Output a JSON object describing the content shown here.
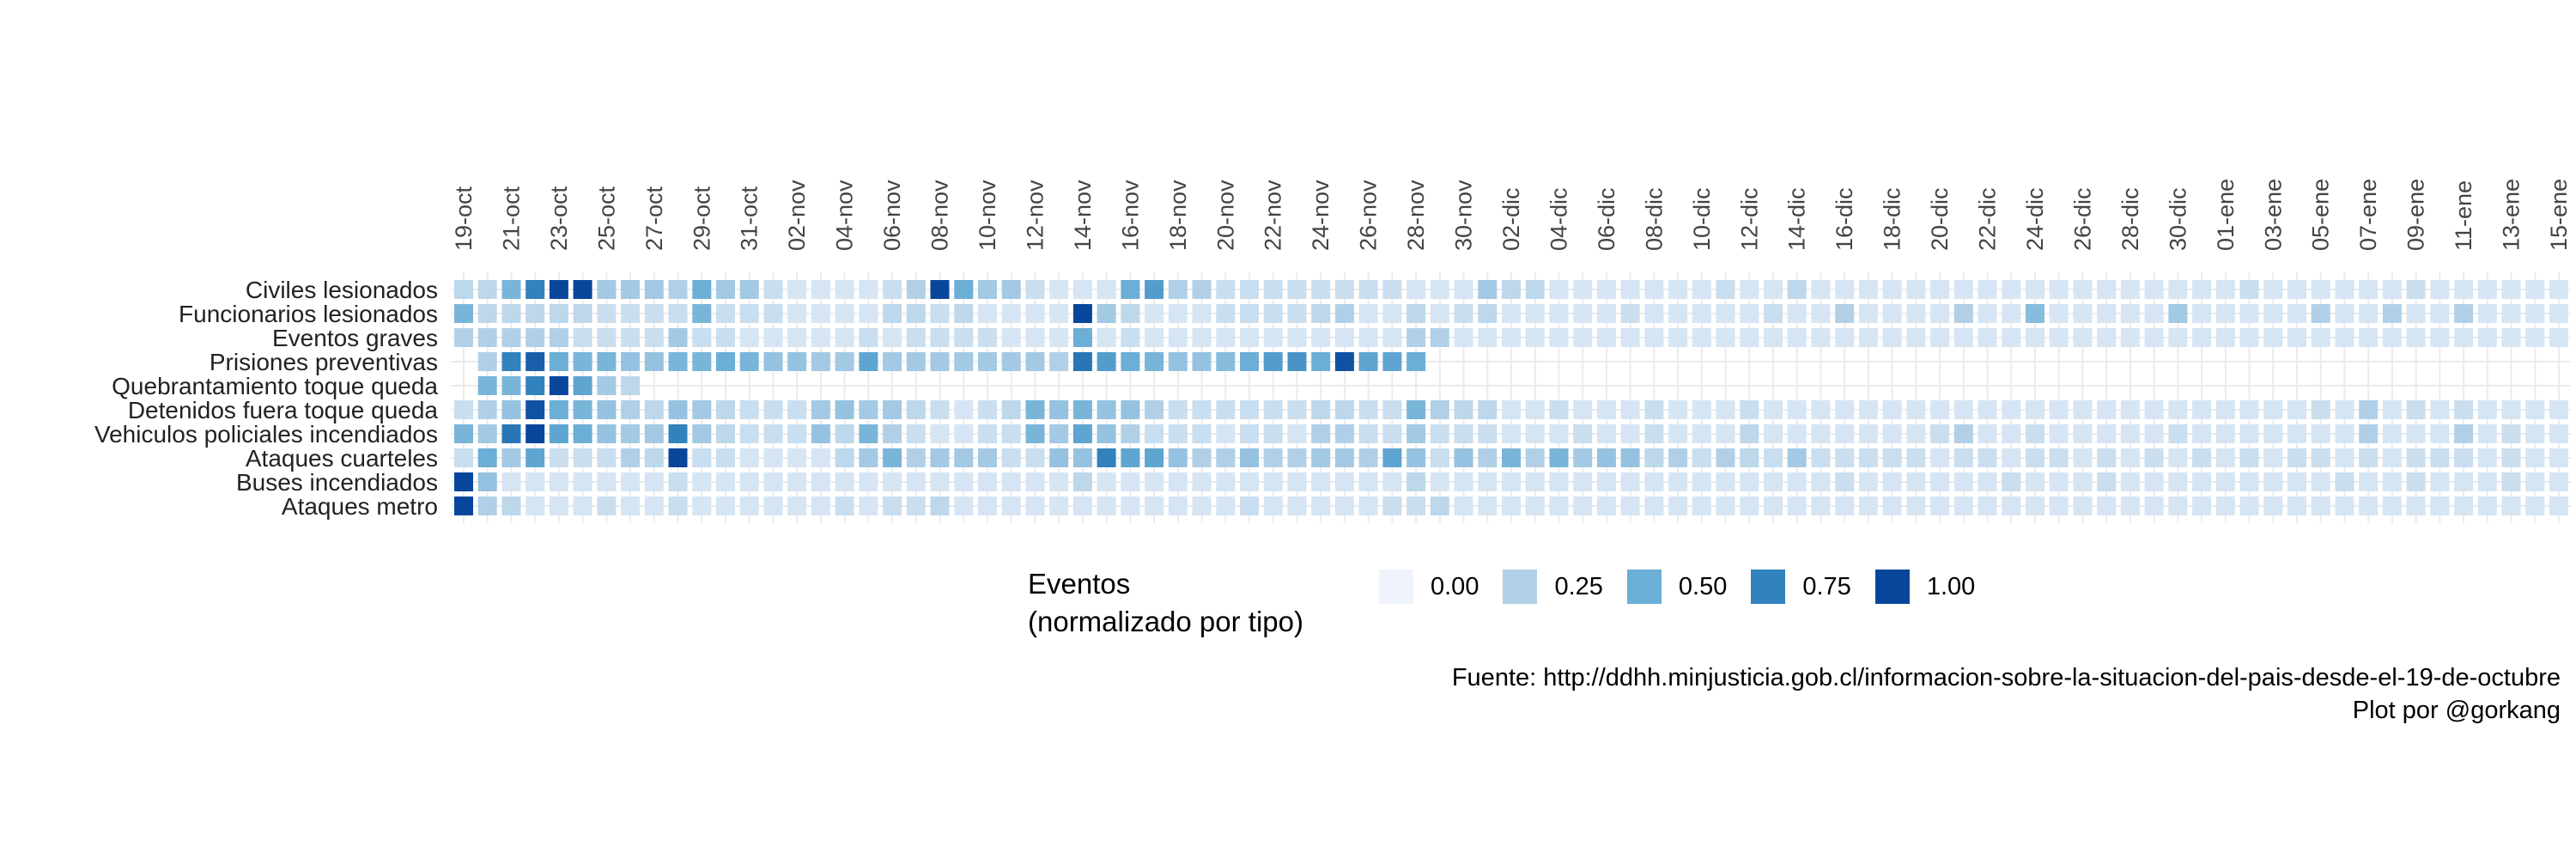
{
  "chart_data": {
    "type": "heatmap",
    "x_ticks": [
      "19-oct",
      "21-oct",
      "23-oct",
      "25-oct",
      "27-oct",
      "29-oct",
      "31-oct",
      "02-nov",
      "04-nov",
      "06-nov",
      "08-nov",
      "10-nov",
      "12-nov",
      "14-nov",
      "16-nov",
      "18-nov",
      "20-nov",
      "22-nov",
      "24-nov",
      "26-nov",
      "28-nov",
      "30-nov",
      "02-dic",
      "04-dic",
      "06-dic",
      "08-dic",
      "10-dic",
      "12-dic",
      "14-dic",
      "16-dic",
      "18-dic",
      "20-dic",
      "22-dic",
      "24-dic",
      "26-dic",
      "28-dic",
      "30-dic",
      "01-ene",
      "03-ene",
      "05-ene",
      "07-ene",
      "09-ene",
      "11-ene",
      "13-ene",
      "15-ene"
    ],
    "num_days": 89,
    "rows": [
      {
        "label": "Civiles lesionados",
        "values": [
          0.2,
          0.2,
          0.45,
          0.75,
          1,
          1,
          0.3,
          0.3,
          0.3,
          0.25,
          0.5,
          0.3,
          0.3,
          0.15,
          0.1,
          0.1,
          0.1,
          0.1,
          0.15,
          0.25,
          1,
          0.5,
          0.3,
          0.3,
          0.15,
          0.1,
          0.1,
          0.1,
          0.5,
          0.6,
          0.25,
          0.25,
          0.15,
          0.15,
          0.15,
          0.15,
          0.15,
          0.15,
          0.15,
          0.15,
          0.1,
          0.1,
          0.1,
          0.3,
          0.2,
          0.2,
          0.1,
          0.1,
          0.1,
          0.1,
          0.1,
          0.1,
          0.1,
          0.15,
          0.1,
          0.1,
          0.2,
          0.1,
          0.1,
          0.1,
          0.1,
          0.1,
          0.1,
          0.1,
          0.1,
          0.1,
          0.1,
          0.1,
          0.1,
          0.1,
          0.1,
          0.1,
          0.1,
          0.1,
          0.1,
          0.15,
          0.1,
          0.1,
          0.1,
          0.1,
          0.1,
          0.1,
          0.15,
          0.1,
          0.1,
          0.1,
          0.1,
          0.1,
          0.1
        ]
      },
      {
        "label": "Funcionarios lesionados",
        "values": [
          0.45,
          0.2,
          0.2,
          0.2,
          0.2,
          0.2,
          0.15,
          0.15,
          0.15,
          0.15,
          0.45,
          0.15,
          0.15,
          0.15,
          0.1,
          0.1,
          0.1,
          0.1,
          0.2,
          0.2,
          0.15,
          0.2,
          0.1,
          0.1,
          0.1,
          0.1,
          1,
          0.3,
          0.2,
          0.1,
          0.1,
          0.1,
          0.15,
          0.15,
          0.15,
          0.15,
          0.2,
          0.25,
          0.1,
          0.1,
          0.2,
          0.1,
          0.15,
          0.2,
          0.1,
          0.1,
          0.1,
          0.1,
          0.1,
          0.15,
          0.1,
          0.1,
          0.1,
          0.1,
          0.1,
          0.15,
          0.1,
          0.1,
          0.25,
          0.1,
          0.1,
          0.1,
          0.1,
          0.25,
          0.1,
          0.1,
          0.4,
          0.1,
          0.1,
          0.1,
          0.1,
          0.1,
          0.3,
          0.1,
          0.1,
          0.1,
          0.1,
          0.1,
          0.25,
          0.1,
          0.1,
          0.25,
          0.1,
          0.1,
          0.25,
          0.1,
          0.1,
          0.1,
          0.1
        ]
      },
      {
        "label": "Eventos graves",
        "values": [
          0.25,
          0.25,
          0.25,
          0.25,
          0.25,
          0.15,
          0.15,
          0.15,
          0.15,
          0.3,
          0.15,
          0.15,
          0.1,
          0.1,
          0.1,
          0.1,
          0.1,
          0.15,
          0.1,
          0.15,
          0.15,
          0.15,
          0.15,
          0.1,
          0.1,
          0.1,
          0.5,
          0.1,
          0.15,
          0.1,
          0.1,
          0.1,
          0.1,
          0.1,
          0.1,
          0.1,
          0.1,
          0.1,
          0.1,
          0.1,
          0.25,
          0.25,
          0.1,
          0.1,
          0.1,
          0.1,
          0.1,
          0.1,
          0.1,
          0.1,
          0.1,
          0.1,
          0.1,
          0.1,
          0.1,
          0.1,
          0.1,
          0.1,
          0.1,
          0.1,
          0.1,
          0.1,
          0.1,
          0.1,
          0.1,
          0.1,
          0.1,
          0.1,
          0.1,
          0.1,
          0.1,
          0.1,
          0.1,
          0.1,
          0.1,
          0.1,
          0.1,
          0.1,
          0.1,
          0.1,
          0.1,
          0.1,
          0.1,
          0.1,
          0.1,
          0.1,
          0.1,
          0.1,
          0.1
        ]
      },
      {
        "label": "Prisiones preventivas",
        "values": [
          null,
          0.25,
          0.75,
          0.9,
          0.5,
          0.45,
          0.45,
          0.35,
          0.35,
          0.45,
          0.45,
          0.5,
          0.45,
          0.35,
          0.35,
          0.3,
          0.3,
          0.55,
          0.3,
          0.3,
          0.3,
          0.3,
          0.3,
          0.3,
          0.3,
          0.25,
          0.8,
          0.6,
          0.5,
          0.45,
          0.35,
          0.35,
          0.4,
          0.5,
          0.6,
          0.65,
          0.5,
          0.95,
          0.55,
          0.55,
          0.5,
          null,
          null,
          null,
          null,
          null,
          null,
          null,
          null,
          null,
          null,
          null,
          null,
          null,
          null,
          null,
          null,
          null,
          null,
          null,
          null,
          null,
          null,
          null,
          null,
          null,
          null,
          null,
          null,
          null,
          null,
          null,
          null,
          null,
          null,
          null,
          null,
          null,
          null,
          null,
          null,
          null,
          null,
          null,
          null,
          null,
          null,
          null,
          null
        ]
      },
      {
        "label": "Quebrantamiento toque queda",
        "values": [
          null,
          0.45,
          0.45,
          0.75,
          1,
          0.55,
          0.3,
          0.2,
          null,
          null,
          null,
          null,
          null,
          null,
          null,
          null,
          null,
          null,
          null,
          null,
          null,
          null,
          null,
          null,
          null,
          null,
          null,
          null,
          null,
          null,
          null,
          null,
          null,
          null,
          null,
          null,
          null,
          null,
          null,
          null,
          null,
          null,
          null,
          null,
          null,
          null,
          null,
          null,
          null,
          null,
          null,
          null,
          null,
          null,
          null,
          null,
          null,
          null,
          null,
          null,
          null,
          null,
          null,
          null,
          null,
          null,
          null,
          null,
          null,
          null,
          null,
          null,
          null,
          null,
          null,
          null,
          null,
          null,
          null,
          null,
          null,
          null,
          null,
          null,
          null,
          null,
          null,
          null,
          null
        ]
      },
      {
        "label": "Detenidos fuera toque queda",
        "values": [
          0.15,
          0.25,
          0.35,
          0.95,
          0.5,
          0.45,
          0.35,
          0.25,
          0.2,
          0.35,
          0.3,
          0.2,
          0.15,
          0.15,
          0.15,
          0.3,
          0.35,
          0.3,
          0.3,
          0.2,
          0.15,
          0.1,
          0.15,
          0.2,
          0.45,
          0.35,
          0.45,
          0.35,
          0.35,
          0.25,
          0.15,
          0.15,
          0.15,
          0.15,
          0.15,
          0.15,
          0.2,
          0.2,
          0.15,
          0.15,
          0.45,
          0.25,
          0.2,
          0.2,
          0.1,
          0.1,
          0.15,
          0.1,
          0.1,
          0.1,
          0.15,
          0.1,
          0.1,
          0.1,
          0.15,
          0.1,
          0.1,
          0.1,
          0.1,
          0.1,
          0.1,
          0.1,
          0.1,
          0.1,
          0.1,
          0.1,
          0.1,
          0.1,
          0.1,
          0.1,
          0.1,
          0.1,
          0.1,
          0.1,
          0.1,
          0.1,
          0.1,
          0.1,
          0.15,
          0.1,
          0.25,
          0.1,
          0.15,
          0.1,
          0.15,
          0.1,
          0.1,
          0.1,
          0.1
        ]
      },
      {
        "label": "Vehiculos policiales incendiados",
        "values": [
          0.45,
          0.3,
          0.8,
          1,
          0.55,
          0.5,
          0.35,
          0.3,
          0.3,
          0.75,
          0.3,
          0.2,
          0.15,
          0.15,
          0.15,
          0.35,
          0.2,
          0.45,
          0.25,
          0.15,
          0.1,
          0.1,
          0.15,
          0.15,
          0.45,
          0.3,
          0.55,
          0.35,
          0.25,
          0.15,
          0.15,
          0.15,
          0.1,
          0.15,
          0.15,
          0.1,
          0.25,
          0.25,
          0.15,
          0.15,
          0.3,
          0.15,
          0.15,
          0.15,
          0.1,
          0.1,
          0.1,
          0.15,
          0.1,
          0.1,
          0.15,
          0.1,
          0.1,
          0.1,
          0.2,
          0.1,
          0.1,
          0.1,
          0.1,
          0.1,
          0.1,
          0.1,
          0.15,
          0.25,
          0.1,
          0.1,
          0.15,
          0.1,
          0.1,
          0.1,
          0.1,
          0.1,
          0.15,
          0.1,
          0.1,
          0.1,
          0.1,
          0.1,
          0.1,
          0.1,
          0.25,
          0.1,
          0.1,
          0.1,
          0.25,
          0.1,
          0.15,
          0.1,
          0.1
        ]
      },
      {
        "label": "Ataques cuarteles",
        "values": [
          0.15,
          0.5,
          0.3,
          0.55,
          0.15,
          0.15,
          0.15,
          0.25,
          0.2,
          1,
          0.15,
          0.15,
          0.1,
          0.1,
          0.1,
          0.1,
          0.2,
          0.3,
          0.45,
          0.25,
          0.3,
          0.3,
          0.3,
          0.15,
          0.15,
          0.35,
          0.35,
          0.75,
          0.55,
          0.55,
          0.35,
          0.25,
          0.25,
          0.35,
          0.25,
          0.25,
          0.3,
          0.3,
          0.25,
          0.55,
          0.35,
          0.15,
          0.35,
          0.25,
          0.45,
          0.25,
          0.45,
          0.3,
          0.35,
          0.35,
          0.2,
          0.25,
          0.15,
          0.25,
          0.2,
          0.15,
          0.3,
          0.15,
          0.15,
          0.15,
          0.15,
          0.15,
          0.1,
          0.15,
          0.15,
          0.1,
          0.15,
          0.15,
          0.1,
          0.15,
          0.1,
          0.15,
          0.1,
          0.15,
          0.1,
          0.15,
          0.1,
          0.15,
          0.15,
          0.1,
          0.15,
          0.1,
          0.15,
          0.15,
          0.15,
          0.1,
          0.15,
          0.1,
          0.1
        ]
      },
      {
        "label": "Buses incendiados",
        "values": [
          1,
          0.35,
          0.1,
          0.1,
          0.1,
          0.1,
          0.1,
          0.1,
          0.1,
          0.15,
          0.1,
          0.1,
          0.1,
          0.1,
          0.1,
          0.1,
          0.1,
          0.1,
          0.1,
          0.1,
          0.1,
          0.1,
          0.1,
          0.1,
          0.1,
          0.1,
          0.2,
          0.1,
          0.1,
          0.1,
          0.1,
          0.1,
          0.1,
          0.1,
          0.1,
          0.1,
          0.1,
          0.1,
          0.1,
          0.1,
          0.2,
          0.1,
          0.1,
          0.1,
          0.1,
          0.1,
          0.1,
          0.1,
          0.1,
          0.1,
          0.1,
          0.1,
          0.1,
          0.1,
          0.1,
          0.1,
          0.1,
          0.1,
          0.15,
          0.1,
          0.1,
          0.1,
          0.1,
          0.1,
          0.1,
          0.15,
          0.1,
          0.1,
          0.1,
          0.15,
          0.1,
          0.1,
          0.1,
          0.1,
          0.1,
          0.1,
          0.1,
          0.1,
          0.1,
          0.15,
          0.1,
          0.1,
          0.15,
          0.1,
          0.1,
          0.1,
          0.15,
          0.1,
          0.1
        ]
      },
      {
        "label": "Ataques metro",
        "values": [
          1,
          0.25,
          0.2,
          0.1,
          0.1,
          0.1,
          0.15,
          0.1,
          0.1,
          0.15,
          0.1,
          0.1,
          0.1,
          0.1,
          0.1,
          0.1,
          0.15,
          0.1,
          0.15,
          0.15,
          0.2,
          0.1,
          0.1,
          0.1,
          0.1,
          0.1,
          0.1,
          0.1,
          0.1,
          0.1,
          0.1,
          0.1,
          0.1,
          0.15,
          0.1,
          0.1,
          0.1,
          0.1,
          0.1,
          0.15,
          0.15,
          0.2,
          0.1,
          0.1,
          0.1,
          0.1,
          0.1,
          0.1,
          0.1,
          0.1,
          0.1,
          0.1,
          0.1,
          0.1,
          0.1,
          0.1,
          0.1,
          0.1,
          0.1,
          0.1,
          0.1,
          0.1,
          0.1,
          0.1,
          0.1,
          0.1,
          0.1,
          0.1,
          0.1,
          0.1,
          0.1,
          0.1,
          0.1,
          0.1,
          0.1,
          0.1,
          0.1,
          0.1,
          0.1,
          0.1,
          0.1,
          0.1,
          0.1,
          0.1,
          0.1,
          0.1,
          0.1,
          0.1,
          0.1
        ]
      }
    ],
    "legend": {
      "title": "Eventos\n(normalizado por tipo)",
      "placement": "bottom",
      "breaks": [
        {
          "value": 0.0,
          "label": "0.00",
          "color": "#eef3fc"
        },
        {
          "value": 0.25,
          "label": "0.25",
          "color": "#b1d0e7"
        },
        {
          "value": 0.5,
          "label": "0.50",
          "color": "#6baed6"
        },
        {
          "value": 0.75,
          "label": "0.75",
          "color": "#3182bd"
        },
        {
          "value": 1.0,
          "label": "1.00",
          "color": "#08469b"
        }
      ]
    },
    "grid": true
  },
  "caption": {
    "source": "Fuente: http://ddhh.minjusticia.gob.cl/informacion-sobre-la-situacion-del-pais-desde-el-19-de-octubre",
    "author": "Plot por @gorkang"
  }
}
